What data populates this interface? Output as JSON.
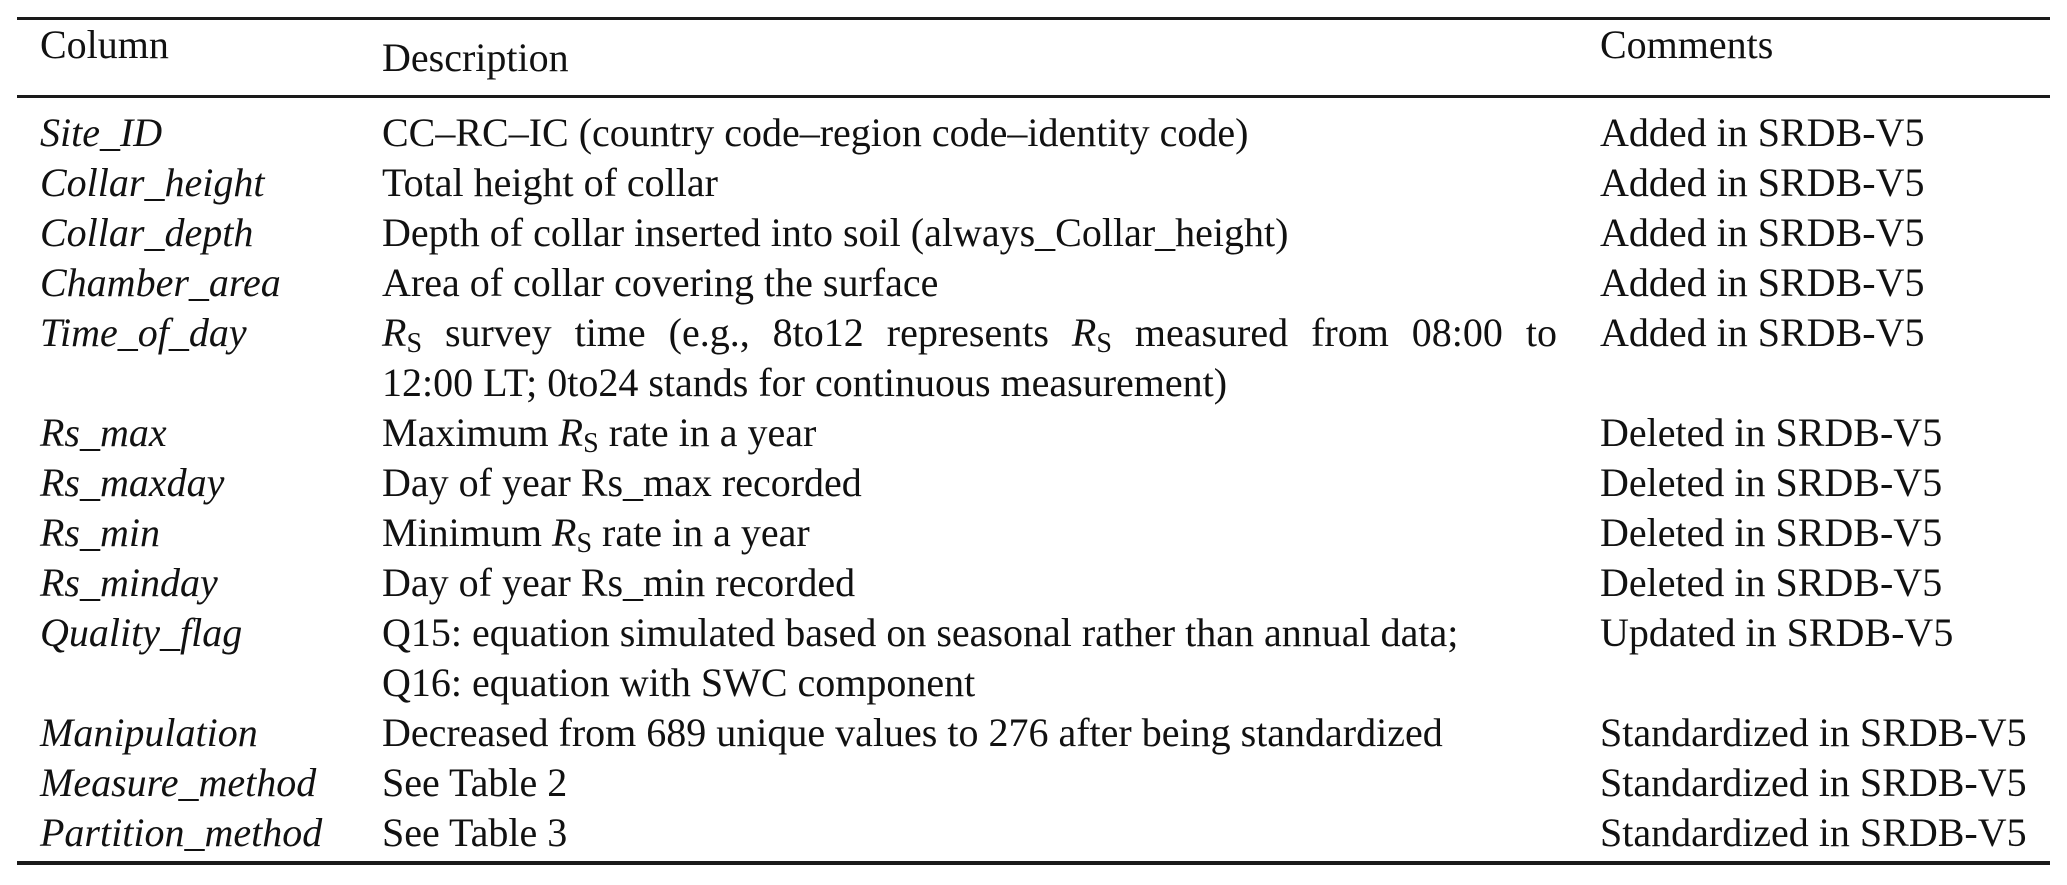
{
  "colors": {
    "background": "#ffffff",
    "text": "#111111",
    "rule": "#1a1a1a"
  },
  "table": {
    "headers": {
      "column": "Column",
      "description": "Description",
      "comments": "Comments"
    },
    "rs": {
      "base": "R",
      "sub": "S"
    },
    "rows": [
      {
        "name": "Site_ID",
        "comment": "Added in SRDB-V5",
        "l1": {
          "t1": "CC–RC–IC (country code–region code–identity code)"
        }
      },
      {
        "name": "Collar_height",
        "comment": "Added in SRDB-V5",
        "l1": {
          "t1": "Total height of collar"
        }
      },
      {
        "name": "Collar_depth",
        "comment": "Added in SRDB-V5",
        "l1": {
          "t1": "Depth of collar inserted into soil (always_Collar_height)"
        }
      },
      {
        "name": "Chamber_area",
        "comment": "Added in SRDB-V5",
        "l1": {
          "t1": "Area of collar covering the surface"
        }
      },
      {
        "name": "Time_of_day",
        "comment": "Added in SRDB-V5",
        "l1": {
          "t1": " survey time (e.g., 8to12 represents ",
          "t2": " measured from 08:00 to"
        },
        "l2": {
          "t1": "12:00 LT; 0to24 stands for continuous measurement)"
        }
      },
      {
        "name": "Rs_max",
        "comment": "Deleted in SRDB-V5",
        "l1": {
          "t1": "Maximum ",
          "t2": " rate in a year"
        }
      },
      {
        "name": "Rs_maxday",
        "comment": "Deleted in SRDB-V5",
        "l1": {
          "t1": "Day of year Rs_max recorded"
        }
      },
      {
        "name": "Rs_min",
        "comment": "Deleted in SRDB-V5",
        "l1": {
          "t1": "Minimum ",
          "t2": " rate in a year"
        }
      },
      {
        "name": "Rs_minday",
        "comment": "Deleted in SRDB-V5",
        "l1": {
          "t1": "Day of year Rs_min recorded"
        }
      },
      {
        "name": "Quality_flag",
        "comment": "Updated in SRDB-V5",
        "l1": {
          "t1": "Q15: equation simulated based on seasonal rather than annual data;"
        },
        "l2": {
          "t1": "Q16: equation with SWC component"
        }
      },
      {
        "name": "Manipulation",
        "comment": "Standardized in SRDB-V5",
        "l1": {
          "t1": "Decreased from 689 unique values to 276 after being standardized"
        }
      },
      {
        "name": "Measure_method",
        "comment": "Standardized in SRDB-V5",
        "l1": {
          "t1": "See Table 2"
        }
      },
      {
        "name": "Partition_method",
        "comment": "Standardized in SRDB-V5",
        "l1": {
          "t1": "See Table 3"
        }
      }
    ]
  }
}
